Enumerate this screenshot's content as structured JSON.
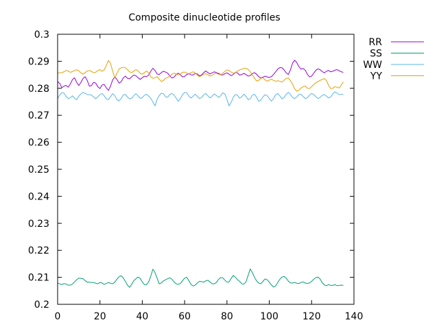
{
  "chart_data": {
    "type": "line",
    "title": "Composite dinucleotide profiles",
    "xlabel": "",
    "ylabel": "",
    "xlim": [
      0,
      140
    ],
    "ylim": [
      0.2,
      0.3
    ],
    "xticks": [
      0,
      20,
      40,
      60,
      80,
      100,
      120,
      140
    ],
    "yticks": [
      0.2,
      0.21,
      0.22,
      0.23,
      0.24,
      0.25,
      0.26,
      0.27,
      0.28,
      0.29,
      0.3
    ],
    "grid": false,
    "legend_position": "top-right outside",
    "x": [
      0,
      1,
      2,
      3,
      4,
      5,
      6,
      7,
      8,
      9,
      10,
      11,
      12,
      13,
      14,
      15,
      16,
      17,
      18,
      19,
      20,
      21,
      22,
      23,
      24,
      25,
      26,
      27,
      28,
      29,
      30,
      31,
      32,
      33,
      34,
      35,
      36,
      37,
      38,
      39,
      40,
      41,
      42,
      43,
      44,
      45,
      46,
      47,
      48,
      49,
      50,
      51,
      52,
      53,
      54,
      55,
      56,
      57,
      58,
      59,
      60,
      61,
      62,
      63,
      64,
      65,
      66,
      67,
      68,
      69,
      70,
      71,
      72,
      73,
      74,
      75,
      76,
      77,
      78,
      79,
      80,
      81,
      82,
      83,
      84,
      85,
      86,
      87,
      88,
      89,
      90,
      91,
      92,
      93,
      94,
      95,
      96,
      97,
      98,
      99,
      100,
      101,
      102,
      103,
      104,
      105,
      106,
      107,
      108,
      109,
      110,
      111,
      112,
      113,
      114,
      115,
      116,
      117,
      118,
      119,
      120,
      121,
      122,
      123,
      124,
      125,
      126,
      127,
      128,
      129,
      130,
      131,
      132,
      133,
      134,
      135
    ],
    "series": [
      {
        "name": "RR",
        "color": "#9400d3",
        "values": [
          0.2825,
          0.2818,
          0.2802,
          0.2808,
          0.2811,
          0.2804,
          0.2816,
          0.2832,
          0.2839,
          0.2822,
          0.281,
          0.2822,
          0.2836,
          0.2843,
          0.2829,
          0.2808,
          0.281,
          0.2822,
          0.2819,
          0.2806,
          0.2799,
          0.2812,
          0.2814,
          0.2802,
          0.2792,
          0.2808,
          0.2831,
          0.2842,
          0.2833,
          0.2819,
          0.2824,
          0.2838,
          0.2845,
          0.2837,
          0.2835,
          0.2843,
          0.2849,
          0.2846,
          0.2839,
          0.2833,
          0.2839,
          0.2845,
          0.2843,
          0.2849,
          0.2863,
          0.2874,
          0.2866,
          0.2853,
          0.2851,
          0.2858,
          0.2863,
          0.286,
          0.2856,
          0.2846,
          0.2838,
          0.2841,
          0.2851,
          0.2856,
          0.285,
          0.2842,
          0.2844,
          0.2851,
          0.2854,
          0.285,
          0.2849,
          0.2855,
          0.2853,
          0.2846,
          0.2849,
          0.2858,
          0.2864,
          0.2858,
          0.2853,
          0.2857,
          0.2861,
          0.2858,
          0.2855,
          0.2851,
          0.2849,
          0.2854,
          0.2857,
          0.2852,
          0.2847,
          0.2851,
          0.2859,
          0.2857,
          0.2849,
          0.2851,
          0.2855,
          0.2851,
          0.2845,
          0.2847,
          0.2854,
          0.2858,
          0.2852,
          0.2843,
          0.2838,
          0.2841,
          0.2845,
          0.2842,
          0.284,
          0.2843,
          0.2851,
          0.2861,
          0.2871,
          0.2877,
          0.2876,
          0.2868,
          0.2857,
          0.2851,
          0.2868,
          0.2893,
          0.2904,
          0.2895,
          0.288,
          0.2871,
          0.2873,
          0.2867,
          0.2852,
          0.2842,
          0.2845,
          0.2856,
          0.2867,
          0.2872,
          0.2869,
          0.2862,
          0.2857,
          0.2863,
          0.2866,
          0.2861,
          0.2863,
          0.2867,
          0.2869,
          0.2865,
          0.2861,
          0.2859
        ]
      },
      {
        "name": "SS",
        "color": "#009e73",
        "values": [
          0.2078,
          0.2076,
          0.2073,
          0.2077,
          0.2075,
          0.2071,
          0.2071,
          0.2075,
          0.2083,
          0.2091,
          0.2097,
          0.2096,
          0.2095,
          0.2088,
          0.2082,
          0.2082,
          0.2081,
          0.2081,
          0.2078,
          0.2076,
          0.2081,
          0.2079,
          0.2074,
          0.2077,
          0.2081,
          0.2078,
          0.2076,
          0.2082,
          0.2093,
          0.2102,
          0.2106,
          0.2098,
          0.2085,
          0.2071,
          0.2063,
          0.2074,
          0.2088,
          0.2095,
          0.2101,
          0.2096,
          0.2083,
          0.2073,
          0.2073,
          0.2083,
          0.2104,
          0.213,
          0.2118,
          0.2097,
          0.2076,
          0.2079,
          0.2087,
          0.2091,
          0.2095,
          0.2098,
          0.2093,
          0.2083,
          0.2076,
          0.2074,
          0.2077,
          0.2087,
          0.2097,
          0.21,
          0.2088,
          0.2074,
          0.2068,
          0.2071,
          0.2079,
          0.2085,
          0.2084,
          0.2082,
          0.2087,
          0.2089,
          0.2083,
          0.2076,
          0.2076,
          0.2081,
          0.2092,
          0.2099,
          0.2098,
          0.209,
          0.2082,
          0.2083,
          0.2096,
          0.2107,
          0.21,
          0.2091,
          0.2085,
          0.2076,
          0.2075,
          0.2083,
          0.2107,
          0.2131,
          0.2118,
          0.21,
          0.2087,
          0.2079,
          0.2076,
          0.2085,
          0.2094,
          0.2091,
          0.2082,
          0.2072,
          0.2064,
          0.2068,
          0.2081,
          0.2093,
          0.2101,
          0.2103,
          0.2097,
          0.2086,
          0.2079,
          0.2079,
          0.2081,
          0.2078,
          0.2077,
          0.2081,
          0.2083,
          0.2079,
          0.2077,
          0.2079,
          0.2085,
          0.2093,
          0.2099,
          0.2101,
          0.2094,
          0.208,
          0.2072,
          0.2069,
          0.2073,
          0.207,
          0.207,
          0.2073,
          0.2069,
          0.207,
          0.2071,
          0.207
        ]
      },
      {
        "name": "WW",
        "color": "#56b4e9",
        "values": [
          0.2762,
          0.2775,
          0.2784,
          0.2782,
          0.277,
          0.2762,
          0.2765,
          0.2772,
          0.2763,
          0.2758,
          0.2771,
          0.2779,
          0.2785,
          0.2781,
          0.2777,
          0.2776,
          0.2775,
          0.2768,
          0.2761,
          0.2769,
          0.2776,
          0.2781,
          0.2772,
          0.2761,
          0.2758,
          0.2769,
          0.278,
          0.2773,
          0.2758,
          0.2753,
          0.2762,
          0.2775,
          0.2777,
          0.2768,
          0.2761,
          0.2763,
          0.2773,
          0.278,
          0.2772,
          0.2763,
          0.2765,
          0.2774,
          0.2778,
          0.2771,
          0.2763,
          0.2749,
          0.2735,
          0.2759,
          0.2773,
          0.2782,
          0.278,
          0.2768,
          0.2767,
          0.2777,
          0.2781,
          0.2775,
          0.2764,
          0.2752,
          0.2762,
          0.2776,
          0.2785,
          0.2783,
          0.2771,
          0.2764,
          0.2771,
          0.2778,
          0.277,
          0.2762,
          0.2766,
          0.2776,
          0.2781,
          0.2772,
          0.2764,
          0.2771,
          0.2779,
          0.2774,
          0.2766,
          0.2772,
          0.2783,
          0.2779,
          0.2759,
          0.2735,
          0.2748,
          0.2767,
          0.2777,
          0.2774,
          0.2763,
          0.2769,
          0.2778,
          0.277,
          0.2758,
          0.2761,
          0.2774,
          0.2778,
          0.2767,
          0.2752,
          0.2756,
          0.2768,
          0.2776,
          0.2773,
          0.2762,
          0.2753,
          0.2762,
          0.2776,
          0.2781,
          0.2772,
          0.2761,
          0.2766,
          0.2778,
          0.2785,
          0.2778,
          0.2766,
          0.2762,
          0.2768,
          0.2777,
          0.2778,
          0.277,
          0.2762,
          0.2765,
          0.2775,
          0.2781,
          0.2777,
          0.2769,
          0.2762,
          0.2766,
          0.2774,
          0.2777,
          0.2771,
          0.2764,
          0.2768,
          0.2779,
          0.2787,
          0.2782,
          0.2777,
          0.2777,
          0.2778
        ]
      },
      {
        "name": "YY",
        "color": "#e69f00",
        "values": [
          0.2858,
          0.2857,
          0.2858,
          0.2861,
          0.2866,
          0.2864,
          0.2859,
          0.2862,
          0.2866,
          0.2868,
          0.2865,
          0.2857,
          0.2852,
          0.2858,
          0.2864,
          0.2866,
          0.2862,
          0.2858,
          0.2859,
          0.2866,
          0.2869,
          0.2863,
          0.2868,
          0.2884,
          0.2903,
          0.2892,
          0.2864,
          0.2838,
          0.2855,
          0.2871,
          0.2876,
          0.2878,
          0.2876,
          0.2869,
          0.2861,
          0.2858,
          0.2864,
          0.2869,
          0.2865,
          0.2855,
          0.2852,
          0.2858,
          0.2864,
          0.2857,
          0.2843,
          0.2837,
          0.2839,
          0.2843,
          0.2834,
          0.2825,
          0.2829,
          0.2837,
          0.284,
          0.2845,
          0.2852,
          0.2856,
          0.2853,
          0.2849,
          0.2853,
          0.2859,
          0.286,
          0.2856,
          0.2854,
          0.2858,
          0.2861,
          0.2857,
          0.2849,
          0.2843,
          0.2847,
          0.2852,
          0.2854,
          0.285,
          0.2845,
          0.2848,
          0.2854,
          0.2856,
          0.2852,
          0.285,
          0.2855,
          0.2863,
          0.2868,
          0.2866,
          0.286,
          0.2856,
          0.2858,
          0.2864,
          0.2868,
          0.2871,
          0.2873,
          0.2874,
          0.287,
          0.2861,
          0.2849,
          0.2838,
          0.2827,
          0.2829,
          0.2837,
          0.2839,
          0.2831,
          0.2826,
          0.283,
          0.2834,
          0.2829,
          0.2826,
          0.2828,
          0.2826,
          0.2823,
          0.283,
          0.2837,
          0.2838,
          0.2828,
          0.2815,
          0.2798,
          0.2789,
          0.2793,
          0.2801,
          0.2806,
          0.2808,
          0.28,
          0.2799,
          0.2806,
          0.2814,
          0.282,
          0.2825,
          0.2829,
          0.2833,
          0.2836,
          0.2829,
          0.2811,
          0.2799,
          0.28,
          0.2806,
          0.2804,
          0.2801,
          0.2812,
          0.2824
        ]
      }
    ]
  }
}
